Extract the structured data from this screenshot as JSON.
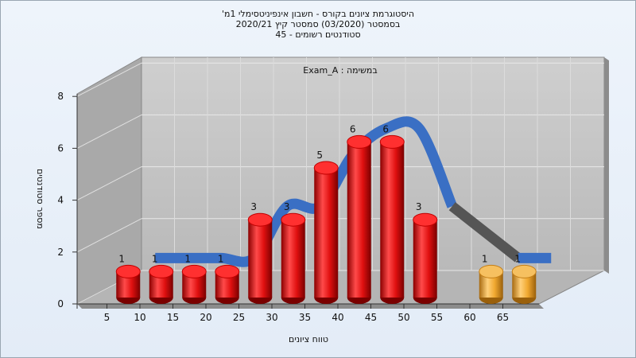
{
  "chart_data": {
    "type": "bar",
    "title": [
      "היסטוגרמת ציונים בקורס - חשבון אינפיניטסימלי 1מ'",
      "בסמסטר  (03/2020)  סמסטר קיץ  2020/21",
      "סטודנטים רשומים - 45"
    ],
    "annotation": "במשימה : Exam_A",
    "xlabel": "טווח ציונים",
    "ylabel": "מספר סטודנטים",
    "categories": [
      "5",
      "10",
      "15",
      "20",
      "25",
      "30",
      "35",
      "40",
      "45",
      "50",
      "55",
      "60",
      "65"
    ],
    "x_ticks": [
      "5",
      "10",
      "15",
      "20",
      "25",
      "30",
      "35",
      "40",
      "45",
      "50",
      "55",
      "60",
      "65"
    ],
    "y_ticks": [
      "0",
      "2",
      "4",
      "6",
      "8"
    ],
    "ylim": [
      0,
      8
    ],
    "grid": true,
    "bars": [
      {
        "x": 7.5,
        "value": 1,
        "label": "1",
        "color": "red"
      },
      {
        "x": 12.5,
        "value": 1,
        "label": "1",
        "color": "red"
      },
      {
        "x": 17.5,
        "value": 1,
        "label": "1",
        "color": "red"
      },
      {
        "x": 22.5,
        "value": 1,
        "label": "1",
        "color": "red"
      },
      {
        "x": 27.5,
        "value": 3,
        "label": "3",
        "color": "red"
      },
      {
        "x": 32.5,
        "value": 3,
        "label": "3",
        "color": "red"
      },
      {
        "x": 37.5,
        "value": 5,
        "label": "5",
        "color": "red"
      },
      {
        "x": 42.5,
        "value": 6,
        "label": "6",
        "color": "red"
      },
      {
        "x": 47.5,
        "value": 6,
        "label": "6",
        "color": "red"
      },
      {
        "x": 52.5,
        "value": 3,
        "label": "3",
        "color": "red"
      },
      {
        "x": 62.5,
        "value": 1,
        "label": "1",
        "color": "orange"
      },
      {
        "x": 67.5,
        "value": 1,
        "label": "1",
        "color": "orange"
      }
    ],
    "colors": {
      "bar_red": "#e11d1d",
      "bar_orange": "#f0a830",
      "ribbon_blue": "#3a6fc4",
      "ribbon_gray": "#555555",
      "floor": "#b8b8b8",
      "wall": "#c4c4c4",
      "left_wall": "#a8a8a8"
    }
  }
}
